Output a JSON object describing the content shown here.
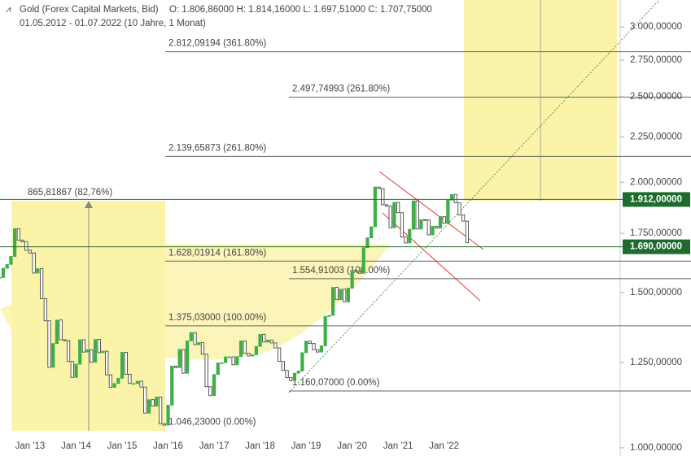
{
  "chart_data": {
    "type": "candlestick",
    "title": "Gold (Forex Capital Markets, Bid)",
    "ohlc": "O: 1.806,86000 H: 1.814,16000 L: 1.697,51000 C: 1.707,75000",
    "subtitle": "01.05.2012 - 01.07.2022 (10 Jahre, 1 Monat)",
    "log_y": true,
    "ylim": [
      979,
      3218
    ],
    "yticks": [
      {
        "value": 1000,
        "label": "1.000,00000"
      },
      {
        "value": 1250,
        "label": "1.250,00000"
      },
      {
        "value": 1500,
        "label": "1.500,00000"
      },
      {
        "value": 1750,
        "label": "1.750,00000"
      },
      {
        "value": 2000,
        "label": "2.000,00000"
      },
      {
        "value": 2250,
        "label": "2.250,00000"
      },
      {
        "value": 2500,
        "label": "2.500,00000"
      },
      {
        "value": 2750,
        "label": "2.750,00000"
      },
      {
        "value": 3000,
        "label": "3.000,00000"
      }
    ],
    "categories": [
      null,
      null,
      null,
      null,
      null,
      null,
      null,
      null,
      "Jan '13",
      null,
      null,
      null,
      null,
      null,
      null,
      null,
      null,
      null,
      null,
      null,
      "Jan '14",
      null,
      null,
      null,
      null,
      null,
      null,
      null,
      null,
      null,
      null,
      null,
      "Jan '15",
      null,
      null,
      null,
      null,
      null,
      null,
      null,
      null,
      null,
      null,
      null,
      "Jan '16",
      null,
      null,
      null,
      null,
      null,
      null,
      null,
      null,
      null,
      null,
      null,
      "Jan '17",
      null,
      null,
      null,
      null,
      null,
      null,
      null,
      null,
      null,
      null,
      null,
      "Jan '18",
      null,
      null,
      null,
      null,
      null,
      null,
      null,
      null,
      null,
      null,
      null,
      "Jan '19",
      null,
      null,
      null,
      null,
      null,
      null,
      null,
      null,
      null,
      null,
      null,
      "Jan '20",
      null,
      null,
      null,
      null,
      null,
      null,
      null,
      null,
      null,
      null,
      null,
      "Jan '21",
      null,
      null,
      null,
      null,
      null,
      null,
      null,
      null,
      null,
      null,
      null,
      "Jan '22",
      null,
      null,
      null,
      null,
      null,
      null
    ],
    "values": [
      1560,
      1598,
      1614,
      1648,
      1772,
      1720,
      1712,
      1675,
      1663,
      1578,
      1596,
      1476,
      1393,
      1234,
      1313,
      1396,
      1326,
      1323,
      1253,
      1202,
      1244,
      1326,
      1284,
      1292,
      1250,
      1327,
      1282,
      1287,
      1210,
      1171,
      1183,
      1199,
      1283,
      1212,
      1183,
      1183,
      1190,
      1172,
      1095,
      1134,
      1115,
      1142,
      1065,
      1061,
      1118,
      1238,
      1233,
      1293,
      1215,
      1322,
      1351,
      1309,
      1316,
      1277,
      1173,
      1146,
      1211,
      1248,
      1249,
      1268,
      1268,
      1242,
      1269,
      1322,
      1280,
      1271,
      1275,
      1303,
      1345,
      1318,
      1325,
      1315,
      1298,
      1253,
      1224,
      1201,
      1192,
      1215,
      1222,
      1282,
      1321,
      1313,
      1292,
      1284,
      1305,
      1409,
      1413,
      1520,
      1472,
      1513,
      1464,
      1517,
      1589,
      1585,
      1577,
      1686,
      1730,
      1781,
      1975,
      1967,
      1886,
      1879,
      1776,
      1898,
      1847,
      1734,
      1707,
      1769,
      1905,
      1770,
      1814,
      1813,
      1743,
      1783,
      1774,
      1829,
      1797,
      1909,
      1937,
      1896,
      1837,
      1807,
      1707.75
    ],
    "up_color": "#3fae49",
    "down_color": "#333333",
    "levels": [
      {
        "value": 2812.09194,
        "label": "2.812,09194 (361.80%)"
      },
      {
        "value": 2497.74993,
        "label": "2.497,74993 (261.80%)"
      },
      {
        "value": 2139.65873,
        "label": "2.139,65873 (261.80%)"
      },
      {
        "value": 1628.01914,
        "label": "1.628,01914 (161.80%)"
      },
      {
        "value": 1554.91003,
        "label": "1.554,91003 (100.00%)"
      },
      {
        "value": 1375.03,
        "label": "1.375,03000 (100.00%)"
      },
      {
        "value": 1160.07,
        "label": "1.160,07000 (0.00%)"
      },
      {
        "value": 1046.23,
        "label": "1.046,23000 (0.00%)"
      }
    ],
    "range_label": "865,81867 (82,76%)",
    "price_lines": [
      {
        "value": 1912,
        "label": "1.912,00000"
      },
      {
        "value": 1690,
        "label": "1.690,00000"
      }
    ],
    "price_color": "#1e6b2e"
  }
}
